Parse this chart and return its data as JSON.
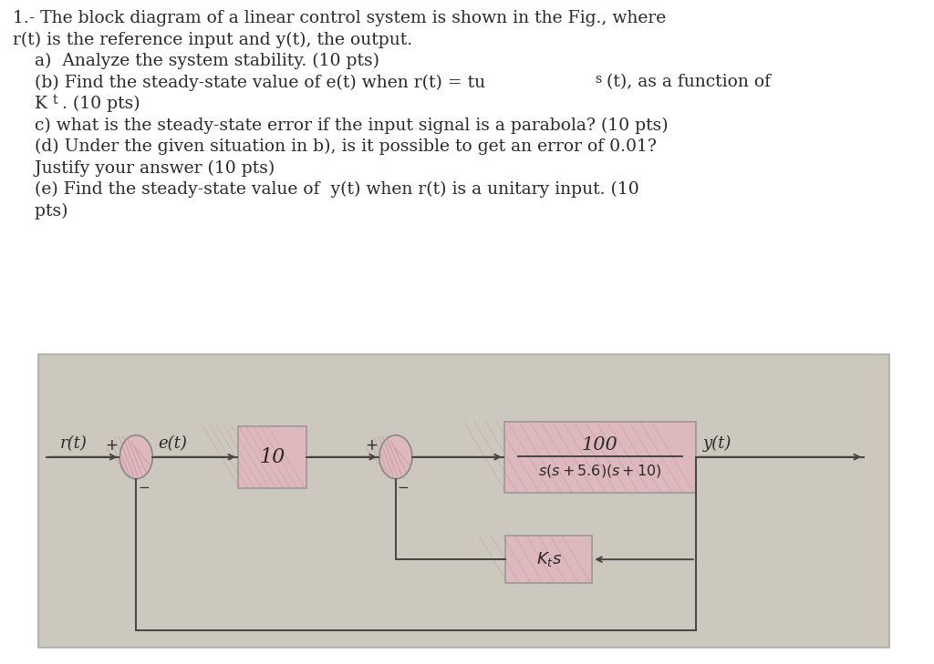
{
  "bg_color": "#ffffff",
  "text_color": "#2a2a2a",
  "block_fill": "#ddb8bc",
  "block_edge": "#999999",
  "sum_fill": "#ddb8bc",
  "sum_edge": "#888888",
  "diagram_bg": "#cdc8be",
  "diagram_border": "#aaaaaa",
  "line_color": "#444444",
  "font_size_text": 13.5,
  "title_lines": [
    "1.- The block diagram of a linear control system is shown in the Fig., where",
    "r(t) is the reference input and y(t), the output.",
    "    a)  Analyze the system stability. (10 pts)",
    "    (b) Find the steady-state value of e(t) when r(t) = tu_s(t), as a function of",
    "    K_t. (10 pts)",
    "    c) what is the steady-state error if the input signal is a parabola? (10 pts)",
    "    (d) Under the given situation in b), is it possible to get an error of 0.01?",
    "    Justify your answer (10 pts)",
    "    (e) Find the steady-state value of  y(t) when r(t) is a unitary input. (10",
    "    pts)"
  ]
}
